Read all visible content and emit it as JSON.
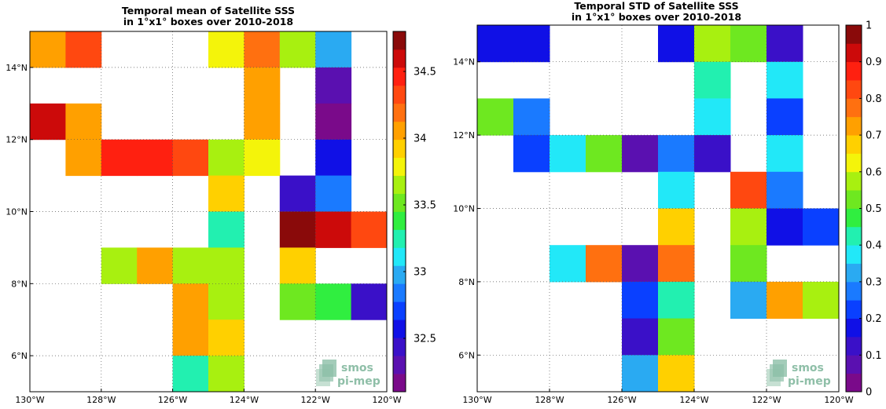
{
  "chart_data": [
    {
      "type": "heatmap",
      "title_line1": "Temporal mean of Satellite SSS",
      "title_line2": "in 1°x1° boxes over 2010-2018",
      "xlim": [
        -130,
        -120
      ],
      "ylim": [
        5,
        15
      ],
      "x_ticks": [
        "130°W",
        "128°W",
        "126°W",
        "124°W",
        "122°W",
        "120°W"
      ],
      "y_ticks": [
        "6°N",
        "8°N",
        "10°N",
        "12°N",
        "14°N"
      ],
      "colorbar": {
        "min": 32.1,
        "max": 34.8,
        "ticks": [
          "32.5",
          "33",
          "33.5",
          "34",
          "34.5"
        ]
      },
      "cells": [
        {
          "lon": -129.5,
          "lat": 14.5,
          "value": 34.0
        },
        {
          "lon": -128.5,
          "lat": 14.5,
          "value": 34.3
        },
        {
          "lon": -124.5,
          "lat": 14.5,
          "value": 33.8
        },
        {
          "lon": -123.5,
          "lat": 14.5,
          "value": 34.2
        },
        {
          "lon": -122.5,
          "lat": 14.5,
          "value": 33.7
        },
        {
          "lon": -121.5,
          "lat": 14.5,
          "value": 33.0
        },
        {
          "lon": -123.5,
          "lat": 13.5,
          "value": 34.1
        },
        {
          "lon": -121.5,
          "lat": 13.5,
          "value": 32.3
        },
        {
          "lon": -129.5,
          "lat": 12.5,
          "value": 34.6
        },
        {
          "lon": -128.5,
          "lat": 12.5,
          "value": 34.0
        },
        {
          "lon": -123.5,
          "lat": 12.5,
          "value": 34.0
        },
        {
          "lon": -121.5,
          "lat": 12.5,
          "value": 32.2
        },
        {
          "lon": -128.5,
          "lat": 11.5,
          "value": 34.1
        },
        {
          "lon": -127.5,
          "lat": 11.5,
          "value": 34.4
        },
        {
          "lon": -126.5,
          "lat": 11.5,
          "value": 34.4
        },
        {
          "lon": -125.5,
          "lat": 11.5,
          "value": 34.3
        },
        {
          "lon": -124.5,
          "lat": 11.5,
          "value": 33.7
        },
        {
          "lon": -123.5,
          "lat": 11.5,
          "value": 33.8
        },
        {
          "lon": -121.5,
          "lat": 11.5,
          "value": 32.6
        },
        {
          "lon": -124.5,
          "lat": 10.5,
          "value": 33.9
        },
        {
          "lon": -122.5,
          "lat": 10.5,
          "value": 32.5
        },
        {
          "lon": -121.5,
          "lat": 10.5,
          "value": 32.8
        },
        {
          "lon": -124.5,
          "lat": 9.5,
          "value": 33.3
        },
        {
          "lon": -122.5,
          "lat": 9.5,
          "value": 34.8
        },
        {
          "lon": -121.5,
          "lat": 9.5,
          "value": 34.6
        },
        {
          "lon": -120.5,
          "lat": 9.5,
          "value": 34.3
        },
        {
          "lon": -127.5,
          "lat": 8.5,
          "value": 33.7
        },
        {
          "lon": -126.5,
          "lat": 8.5,
          "value": 34.1
        },
        {
          "lon": -125.5,
          "lat": 8.5,
          "value": 33.7
        },
        {
          "lon": -124.5,
          "lat": 8.5,
          "value": 33.7
        },
        {
          "lon": -122.5,
          "lat": 8.5,
          "value": 33.9
        },
        {
          "lon": -125.5,
          "lat": 7.5,
          "value": 34.0
        },
        {
          "lon": -124.5,
          "lat": 7.5,
          "value": 33.7
        },
        {
          "lon": -122.5,
          "lat": 7.5,
          "value": 33.5
        },
        {
          "lon": -121.5,
          "lat": 7.5,
          "value": 33.4
        },
        {
          "lon": -120.5,
          "lat": 7.5,
          "value": 32.4
        },
        {
          "lon": -125.5,
          "lat": 6.5,
          "value": 34.1
        },
        {
          "lon": -124.5,
          "lat": 6.5,
          "value": 33.9
        },
        {
          "lon": -125.5,
          "lat": 5.5,
          "value": 33.3
        },
        {
          "lon": -124.5,
          "lat": 5.5,
          "value": 33.7
        }
      ]
    },
    {
      "type": "heatmap",
      "title_line1": "Temporal STD of Satellite SSS",
      "title_line2": "in 1°x1° boxes over 2010-2018",
      "xlim": [
        -130,
        -120
      ],
      "ylim": [
        5,
        15
      ],
      "x_ticks": [
        "130°W",
        "128°W",
        "126°W",
        "124°W",
        "122°W",
        "120°W"
      ],
      "y_ticks": [
        "6°N",
        "8°N",
        "10°N",
        "12°N",
        "14°N"
      ],
      "colorbar": {
        "min": 0,
        "max": 1,
        "ticks": [
          "0",
          "0.1",
          "0.2",
          "0.3",
          "0.4",
          "0.5",
          "0.6",
          "0.7",
          "0.8",
          "0.9",
          "1"
        ]
      },
      "cells": [
        {
          "lon": -129.5,
          "lat": 14.5,
          "value": 0.15
        },
        {
          "lon": -128.5,
          "lat": 14.5,
          "value": 0.15
        },
        {
          "lon": -124.5,
          "lat": 14.5,
          "value": 0.15
        },
        {
          "lon": -123.5,
          "lat": 14.5,
          "value": 0.57
        },
        {
          "lon": -122.5,
          "lat": 14.5,
          "value": 0.5
        },
        {
          "lon": -121.5,
          "lat": 14.5,
          "value": 0.1
        },
        {
          "lon": -123.5,
          "lat": 13.5,
          "value": 0.4
        },
        {
          "lon": -121.5,
          "lat": 13.5,
          "value": 0.35
        },
        {
          "lon": -129.5,
          "lat": 12.5,
          "value": 0.5
        },
        {
          "lon": -128.5,
          "lat": 12.5,
          "value": 0.25
        },
        {
          "lon": -123.5,
          "lat": 12.5,
          "value": 0.35
        },
        {
          "lon": -121.5,
          "lat": 12.5,
          "value": 0.2
        },
        {
          "lon": -128.5,
          "lat": 11.5,
          "value": 0.2
        },
        {
          "lon": -127.5,
          "lat": 11.5,
          "value": 0.35
        },
        {
          "lon": -126.5,
          "lat": 11.5,
          "value": 0.5
        },
        {
          "lon": -125.5,
          "lat": 11.5,
          "value": 0.05
        },
        {
          "lon": -124.5,
          "lat": 11.5,
          "value": 0.25
        },
        {
          "lon": -123.5,
          "lat": 11.5,
          "value": 0.1
        },
        {
          "lon": -121.5,
          "lat": 11.5,
          "value": 0.35
        },
        {
          "lon": -124.5,
          "lat": 10.5,
          "value": 0.35
        },
        {
          "lon": -122.5,
          "lat": 10.5,
          "value": 0.8
        },
        {
          "lon": -121.5,
          "lat": 10.5,
          "value": 0.25
        },
        {
          "lon": -124.5,
          "lat": 9.5,
          "value": 0.65
        },
        {
          "lon": -122.5,
          "lat": 9.5,
          "value": 0.55
        },
        {
          "lon": -121.5,
          "lat": 9.5,
          "value": 0.15
        },
        {
          "lon": -120.5,
          "lat": 9.5,
          "value": 0.2
        },
        {
          "lon": -127.5,
          "lat": 8.5,
          "value": 0.35
        },
        {
          "lon": -126.5,
          "lat": 8.5,
          "value": 0.75
        },
        {
          "lon": -125.5,
          "lat": 8.5,
          "value": 0.05
        },
        {
          "lon": -124.5,
          "lat": 8.5,
          "value": 0.75
        },
        {
          "lon": -122.5,
          "lat": 8.5,
          "value": 0.5
        },
        {
          "lon": -125.5,
          "lat": 7.5,
          "value": 0.2
        },
        {
          "lon": -124.5,
          "lat": 7.5,
          "value": 0.4
        },
        {
          "lon": -122.5,
          "lat": 7.5,
          "value": 0.3
        },
        {
          "lon": -121.5,
          "lat": 7.5,
          "value": 0.7
        },
        {
          "lon": -120.5,
          "lat": 7.5,
          "value": 0.57
        },
        {
          "lon": -125.5,
          "lat": 6.5,
          "value": 0.1
        },
        {
          "lon": -124.5,
          "lat": 6.5,
          "value": 0.5
        },
        {
          "lon": -125.5,
          "lat": 5.5,
          "value": 0.3
        },
        {
          "lon": -124.5,
          "lat": 5.5,
          "value": 0.65
        }
      ]
    }
  ],
  "colormap": [
    "#7a0a8a",
    "#5a10b0",
    "#3a10c8",
    "#1010e6",
    "#0a40ff",
    "#1a7aff",
    "#2aaaf2",
    "#22e8f8",
    "#22f0b0",
    "#30ee40",
    "#6ee820",
    "#a8f010",
    "#f4f40a",
    "#ffd000",
    "#ffa000",
    "#ff7010",
    "#ff4810",
    "#ff2010",
    "#cc0a0a",
    "#8a0a0a"
  ],
  "watermark": {
    "line1": "smos",
    "line2": "pi-mep"
  }
}
